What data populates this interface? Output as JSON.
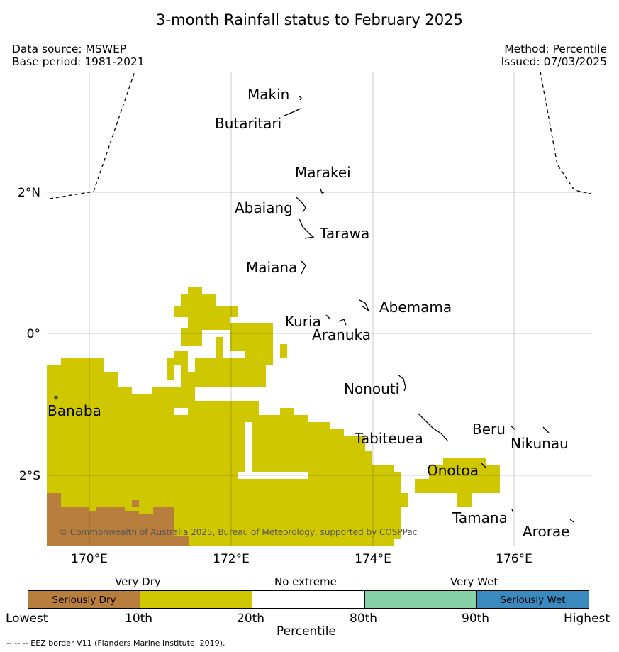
{
  "title": "3-month Rainfall status to February 2025",
  "meta": {
    "data_source": "Data source: MSWEP",
    "base_period": "Base period: 1981-2021",
    "method": "Method: Percentile",
    "issued": "Issued: 07/03/2025"
  },
  "map": {
    "lon_ticks": [
      "170°E",
      "172°E",
      "174°E",
      "176°E"
    ],
    "lat_ticks": [
      "2°N",
      "0°",
      "2°S"
    ],
    "copyright": "© Commonwealth of Australia 2025, Bureau of Meteorology, supported by COSPPac",
    "islands": [
      "Makin",
      "Butaritari",
      "Marakei",
      "Abaiang",
      "Tarawa",
      "Maiana",
      "Abemama",
      "Kuria",
      "Aranuka",
      "Nonouti",
      "Banaba",
      "Tabiteuea",
      "Beru",
      "Nikunau",
      "Onotoa",
      "Tamana",
      "Arorae"
    ],
    "colors": {
      "seriously_dry": "#b87e3e",
      "very_dry": "#cfc800",
      "no_extreme": "#ffffff",
      "very_wet": "#86d0a8",
      "seriously_wet": "#3a89bf"
    }
  },
  "legend": {
    "category_very_dry": "Very Dry",
    "category_no_extreme": "No extreme",
    "category_very_wet": "Very Wet",
    "box_seriously_dry": "Seriously Dry",
    "box_seriously_wet": "Seriously Wet",
    "tick_lowest": "Lowest",
    "tick_10": "10th",
    "tick_20": "20th",
    "tick_80": "80th",
    "tick_90": "90th",
    "tick_highest": "Highest",
    "axis_label": "Percentile"
  },
  "footer": "-- -- -- EEZ border V11 (Flanders Marine Institute, 2019)."
}
